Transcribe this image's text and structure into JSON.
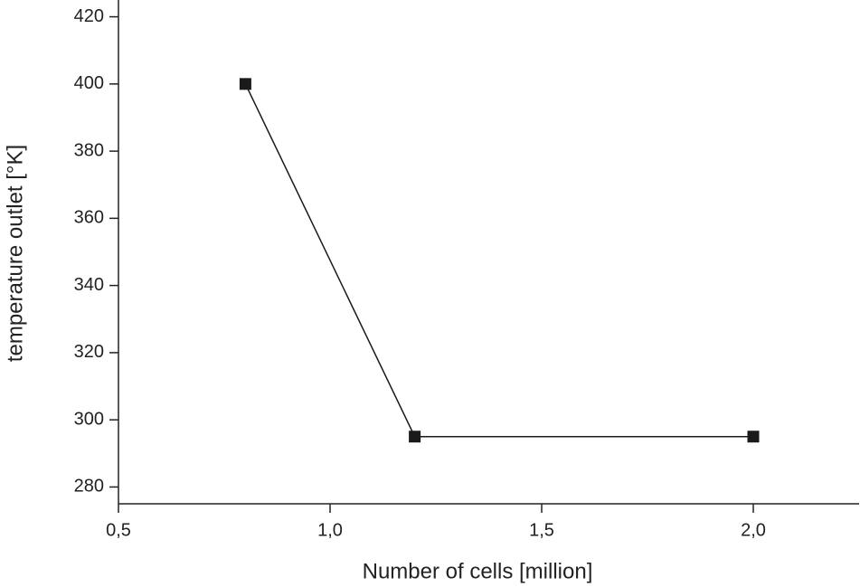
{
  "chart_data": {
    "type": "line",
    "x_label": "Number of cells [million]",
    "y_label": "temperature outlet [°K]",
    "x": [
      0.8,
      1.2,
      2.0
    ],
    "series": [
      {
        "color": "#1a1a1a",
        "values": [
          400,
          295,
          295
        ]
      }
    ],
    "xlim": [
      0.5,
      2.25
    ],
    "xticks": [
      {
        "value": 0.5,
        "label": "0,5"
      },
      {
        "value": 1.0,
        "label": "1,0"
      },
      {
        "value": 1.5,
        "label": "1,5"
      },
      {
        "value": 2.0,
        "label": "2,0"
      }
    ],
    "ylim": [
      275,
      425
    ],
    "yticks": [
      280,
      300,
      320,
      340,
      360,
      380,
      400,
      420
    ],
    "grid": false
  }
}
